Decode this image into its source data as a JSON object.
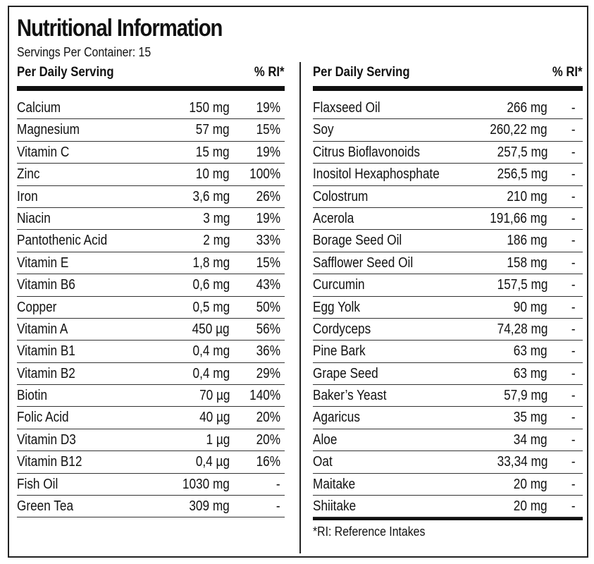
{
  "title": "Nutritional Information",
  "servings": "Servings Per Container: 15",
  "header": {
    "name": "Per Daily Serving",
    "ri": "% RI*"
  },
  "left_rows": [
    {
      "name": "Calcium",
      "amount": "150 mg",
      "ri": "19%"
    },
    {
      "name": "Magnesium",
      "amount": "57 mg",
      "ri": "15%"
    },
    {
      "name": "Vitamin C",
      "amount": "15 mg",
      "ri": "19%"
    },
    {
      "name": "Zinc",
      "amount": "10 mg",
      "ri": "100%"
    },
    {
      "name": "Iron",
      "amount": "3,6 mg",
      "ri": "26%"
    },
    {
      "name": "Niacin",
      "amount": "3 mg",
      "ri": "19%"
    },
    {
      "name": "Pantothenic Acid",
      "amount": "2 mg",
      "ri": "33%"
    },
    {
      "name": "Vitamin E",
      "amount": "1,8 mg",
      "ri": "15%"
    },
    {
      "name": "Vitamin B6",
      "amount": "0,6 mg",
      "ri": "43%"
    },
    {
      "name": "Copper",
      "amount": "0,5 mg",
      "ri": "50%"
    },
    {
      "name": "Vitamin A",
      "amount": "450 µg",
      "ri": "56%"
    },
    {
      "name": "Vitamin B1",
      "amount": "0,4 mg",
      "ri": "36%"
    },
    {
      "name": "Vitamin B2",
      "amount": "0,4 mg",
      "ri": "29%"
    },
    {
      "name": "Biotin",
      "amount": "70 µg",
      "ri": "140%"
    },
    {
      "name": "Folic Acid",
      "amount": "40 µg",
      "ri": "20%"
    },
    {
      "name": "Vitamin D3",
      "amount": "1 µg",
      "ri": "20%"
    },
    {
      "name": "Vitamin B12",
      "amount": "0,4 µg",
      "ri": "16%"
    },
    {
      "name": "Fish Oil",
      "amount": "1030 mg",
      "ri": "-"
    },
    {
      "name": "Green Tea",
      "amount": "309 mg",
      "ri": "-"
    }
  ],
  "right_rows": [
    {
      "name": "Flaxseed Oil",
      "amount": "266 mg",
      "ri": "-"
    },
    {
      "name": "Soy",
      "amount": "260,22 mg",
      "ri": "-"
    },
    {
      "name": "Citrus Bioflavonoids",
      "amount": "257,5 mg",
      "ri": "-"
    },
    {
      "name": "Inositol Hexaphosphate",
      "amount": "256,5 mg",
      "ri": "-"
    },
    {
      "name": "Colostrum",
      "amount": "210 mg",
      "ri": "-"
    },
    {
      "name": "Acerola",
      "amount": "191,66 mg",
      "ri": "-"
    },
    {
      "name": "Borage Seed Oil",
      "amount": "186 mg",
      "ri": "-"
    },
    {
      "name": "Safflower Seed Oil",
      "amount": "158 mg",
      "ri": "-"
    },
    {
      "name": "Curcumin",
      "amount": "157,5 mg",
      "ri": "-"
    },
    {
      "name": "Egg Yolk",
      "amount": "90 mg",
      "ri": "-"
    },
    {
      "name": "Cordyceps",
      "amount": "74,28 mg",
      "ri": "-"
    },
    {
      "name": "Pine Bark",
      "amount": "63 mg",
      "ri": "-"
    },
    {
      "name": "Grape Seed",
      "amount": "63 mg",
      "ri": "-"
    },
    {
      "name": "Baker’s Yeast",
      "amount": "57,9 mg",
      "ri": "-"
    },
    {
      "name": "Agaricus",
      "amount": "35 mg",
      "ri": "-"
    },
    {
      "name": "Aloe",
      "amount": "34 mg",
      "ri": "-"
    },
    {
      "name": "Oat",
      "amount": "33,34 mg",
      "ri": "-"
    },
    {
      "name": "Maitake",
      "amount": "20 mg",
      "ri": "-"
    },
    {
      "name": "Shiitake",
      "amount": "20 mg",
      "ri": "-"
    }
  ],
  "footnote": "*RI: Reference Intakes"
}
